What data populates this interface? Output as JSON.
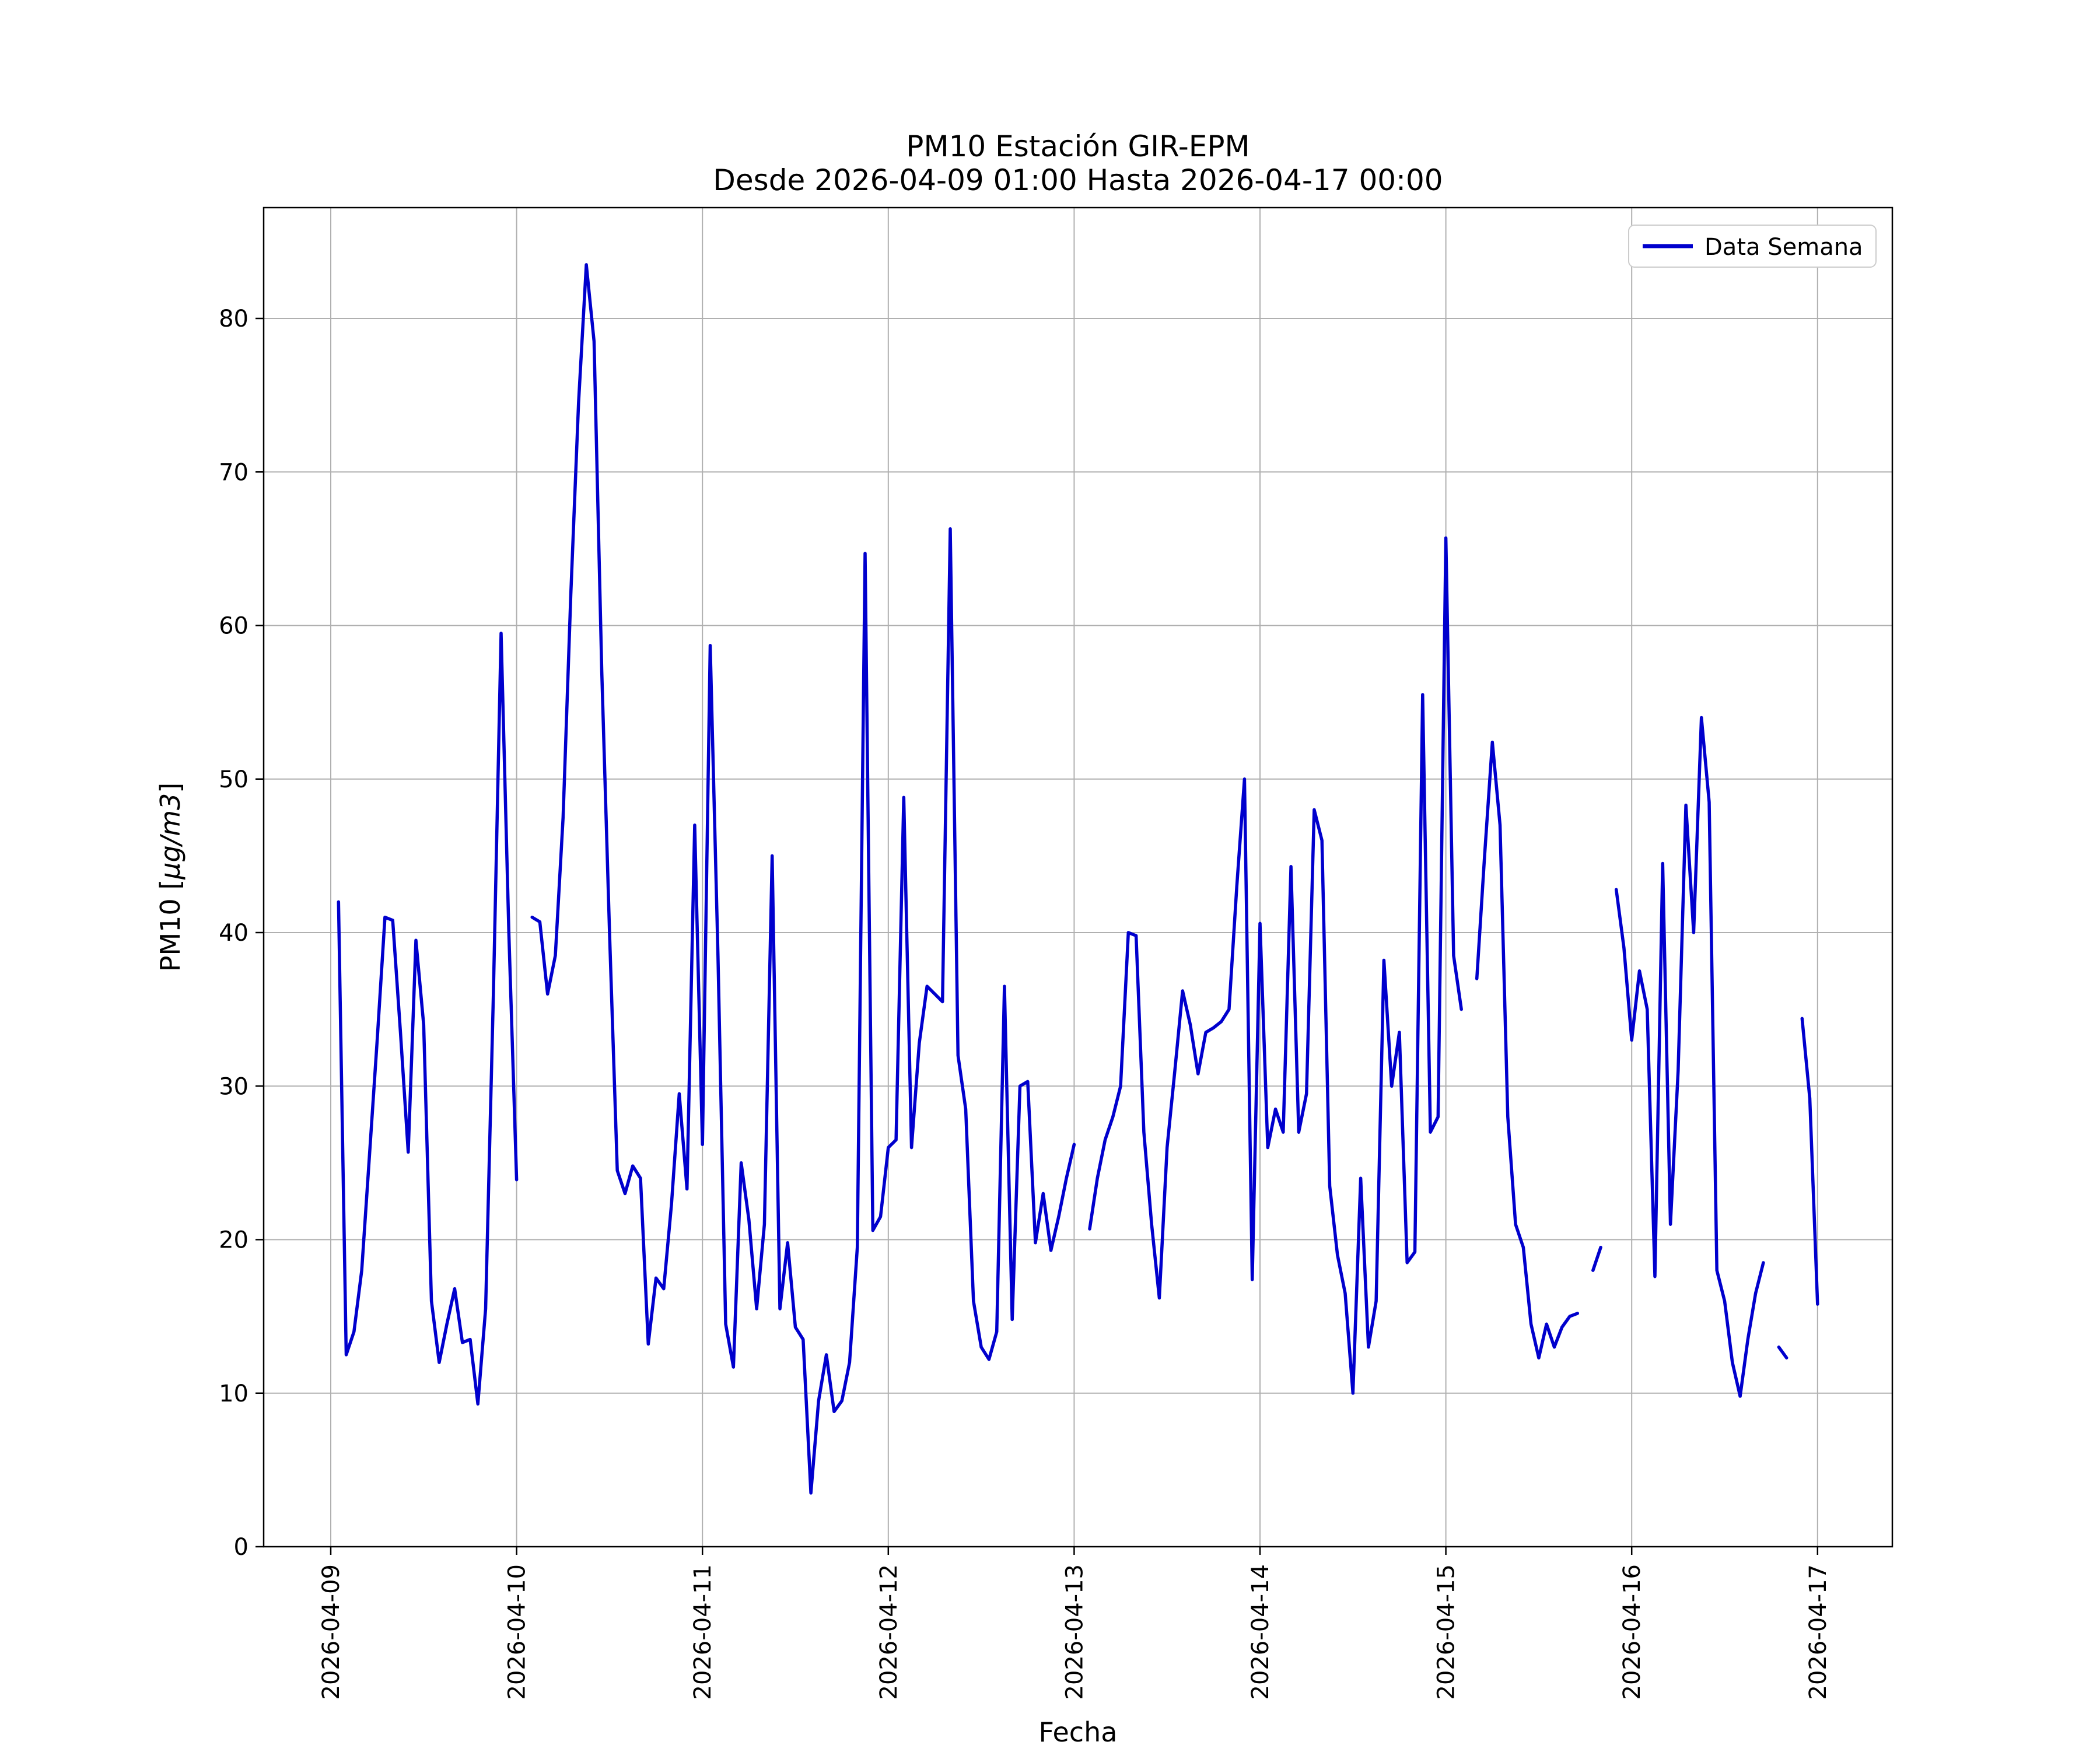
{
  "figure": {
    "title_line1": "PM10 Estación GIR-EPM",
    "title_line2": "Desde 2026-04-09 01:00 Hasta 2026-04-17 00:00",
    "xlabel": "Fecha",
    "ylabel_prefix": "PM10 [",
    "ylabel_unit": "μg/m3",
    "ylabel_suffix": "]",
    "legend_label": "Data Semana",
    "line_color": "#0000cd"
  },
  "chart_data": {
    "type": "line",
    "title": "PM10 Estación GIR-EPM",
    "subtitle": "Desde 2026-04-09 01:00 Hasta 2026-04-17 00:00",
    "xlabel": "Fecha",
    "ylabel": "PM10 [μg/m3]",
    "legend": [
      "Data Semana"
    ],
    "legend_position": "upper right",
    "grid": true,
    "line_color": "#0000cd",
    "x_start": "2026-04-09 01:00",
    "x_interval_hours": 1,
    "x_tick_labels": [
      "2026-04-09",
      "2026-04-10",
      "2026-04-11",
      "2026-04-12",
      "2026-04-13",
      "2026-04-14",
      "2026-04-15",
      "2026-04-16",
      "2026-04-17"
    ],
    "y_ticks": [
      0,
      10,
      20,
      30,
      40,
      50,
      60,
      70,
      80
    ],
    "ylim": [
      0,
      87.2
    ],
    "values": [
      42.0,
      12.5,
      14.0,
      18.0,
      25.5,
      33.0,
      41.0,
      40.8,
      33.5,
      25.7,
      39.5,
      34.0,
      16.0,
      12.0,
      14.5,
      16.8,
      13.3,
      13.5,
      9.3,
      15.5,
      36.0,
      59.5,
      40.0,
      23.9,
      null,
      41.0,
      40.7,
      36.0,
      38.5,
      47.5,
      62.0,
      74.5,
      83.5,
      78.5,
      57.0,
      40.0,
      24.5,
      23.0,
      24.8,
      24.0,
      13.2,
      17.5,
      16.8,
      22.3,
      29.5,
      23.3,
      47.0,
      26.2,
      58.7,
      38.5,
      14.5,
      11.7,
      25.0,
      21.3,
      15.5,
      21.0,
      45.0,
      15.5,
      19.8,
      14.3,
      13.5,
      3.5,
      9.5,
      12.5,
      8.8,
      9.5,
      12.0,
      19.5,
      64.7,
      20.6,
      21.5,
      26.0,
      26.5,
      48.8,
      26.0,
      32.8,
      36.5,
      36.0,
      35.5,
      66.3,
      32.0,
      28.5,
      16.0,
      13.0,
      12.2,
      14.0,
      36.5,
      14.8,
      30.0,
      30.3,
      19.8,
      23.0,
      19.3,
      21.5,
      24.0,
      26.2,
      null,
      20.7,
      24.0,
      26.5,
      28.0,
      30.0,
      40.0,
      39.8,
      27.0,
      21.0,
      16.2,
      26.0,
      31.0,
      36.2,
      34.0,
      30.8,
      33.5,
      33.8,
      34.2,
      35.0,
      43.0,
      50.0,
      17.4,
      40.6,
      26.0,
      28.5,
      27.0,
      44.3,
      27.0,
      29.5,
      48.0,
      46.0,
      23.5,
      19.0,
      16.5,
      10.0,
      24.0,
      13.0,
      16.0,
      38.2,
      30.0,
      33.5,
      18.5,
      19.2,
      55.5,
      27.0,
      28.0,
      65.7,
      38.5,
      35.0,
      null,
      37.0,
      45.0,
      52.4,
      47.0,
      28.0,
      21.0,
      19.5,
      14.5,
      12.3,
      14.5,
      13.0,
      14.3,
      15.0,
      15.2,
      null,
      18.0,
      19.5,
      null,
      42.8,
      39.0,
      33.0,
      37.5,
      35.0,
      17.6,
      44.5,
      21.0,
      31.0,
      48.3,
      40.0,
      54.0,
      48.5,
      18.0,
      16.0,
      12.0,
      9.8,
      13.5,
      16.5,
      18.5,
      null,
      13.0,
      12.3,
      null,
      34.4,
      29.2,
      15.8
    ]
  }
}
